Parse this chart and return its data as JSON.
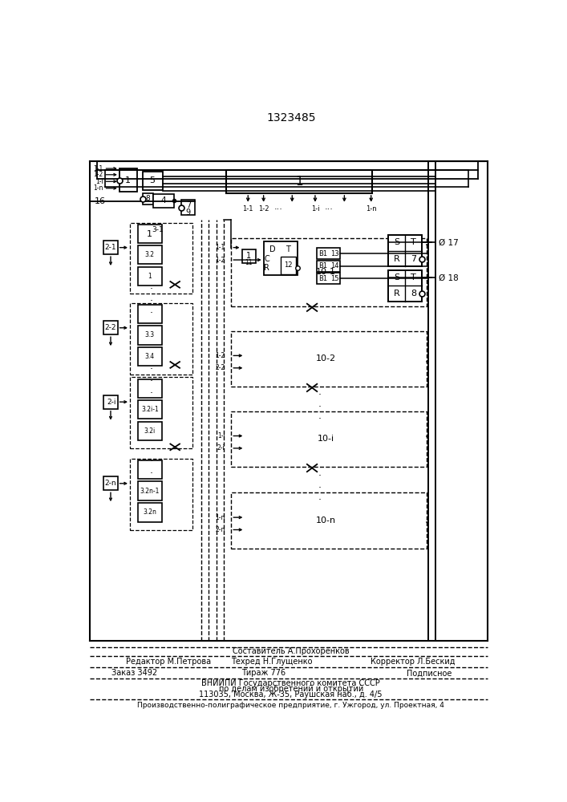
{
  "title": "1323485",
  "bg": "#ffffff",
  "footer": {
    "l1": "Составитель А.Прохоренков",
    "l2a": "Редактор М.Петрова",
    "l2b": "Техред Н.Глущенко",
    "l2c": "Корректор Л.Бескид",
    "l3a": "Заказ 3492",
    "l3b": "Тираж 776",
    "l3c": "Подписное",
    "l4": "ВНИИПИ Государственного комитета СССР",
    "l5": "по делам изобретений и открытий",
    "l6": "113035, Москва, Ж-35, Раушская наб., д. 4/5",
    "l7": "Производственно-полиграфическое предприятие, г. Ужгород, ул. Проектная, 4"
  }
}
